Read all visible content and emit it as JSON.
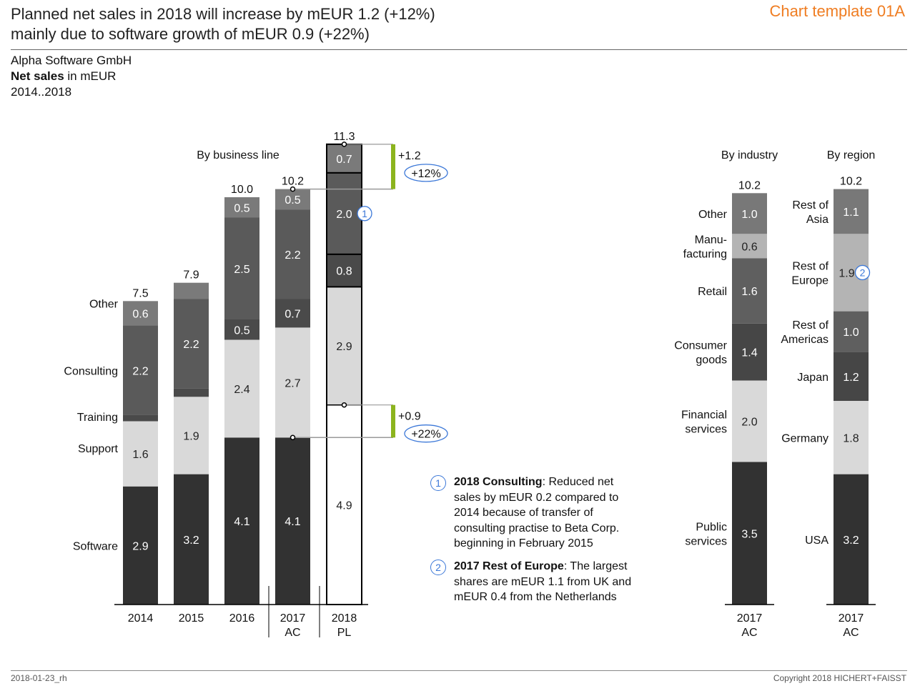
{
  "header": {
    "title_line1": "Planned net sales in 2018 will increase by mEUR 1.2 (+12%)",
    "title_line2": "mainly due to software growth of mEUR 0.9 (+22%)",
    "template_label": "Chart template 01A",
    "company": "Alpha Software GmbH",
    "measure_bold": "Net sales",
    "measure_unit": " in mEUR",
    "period": "2014..2018"
  },
  "footer": {
    "left": "2018-01-23_rh",
    "right": "Copyright 2018 HICHERT+FAISST"
  },
  "colors": {
    "software": "#323232",
    "support": "#d9d9d9",
    "training": "#4a4a4a",
    "consulting": "#5a5a5a",
    "other": "#7a7a7a",
    "plan_outline": "#000000",
    "delta_bar": "#8cb41e",
    "annotation_blue": "#3c78d8"
  },
  "chart_data": [
    {
      "type": "bar",
      "stacked": true,
      "title": "By business line",
      "categories": [
        "2014",
        "2015",
        "2016",
        "2017 AC",
        "2018 PL"
      ],
      "category_lines": [
        [
          "2014"
        ],
        [
          "2015"
        ],
        [
          "2016"
        ],
        [
          "2017",
          "AC"
        ],
        [
          "2018",
          "PL"
        ]
      ],
      "series": [
        {
          "name": "Software",
          "values": [
            2.9,
            3.2,
            4.1,
            4.1,
            4.9
          ],
          "labels": [
            "2.9",
            "3.2",
            "4.1",
            "4.1",
            "4.9"
          ]
        },
        {
          "name": "Support",
          "values": [
            1.6,
            1.9,
            2.4,
            2.7,
            2.9
          ],
          "labels": [
            "1.6",
            "1.9",
            "2.4",
            "2.7",
            "2.9"
          ]
        },
        {
          "name": "Training",
          "values": [
            0.15,
            0.2,
            0.5,
            0.7,
            0.8
          ],
          "labels": [
            "",
            "",
            "0.5",
            "0.7",
            "0.8"
          ]
        },
        {
          "name": "Consulting",
          "values": [
            2.2,
            2.2,
            2.5,
            2.2,
            2.0
          ],
          "labels": [
            "2.2",
            "2.2",
            "2.5",
            "2.2",
            "2.0"
          ]
        },
        {
          "name": "Other",
          "values": [
            0.6,
            0.4,
            0.5,
            0.5,
            0.7
          ],
          "labels": [
            "0.6",
            "",
            "0.5",
            "0.5",
            "0.7"
          ]
        }
      ],
      "totals": [
        "7.5",
        "7.9",
        "10.0",
        "10.2",
        "11.3"
      ],
      "legend_row_labels": [
        "Other",
        "Consulting",
        "Training",
        "Support",
        "Software"
      ],
      "scenario": {
        "plan_category": "2018 PL",
        "outlined": true
      },
      "deltas": [
        {
          "from": "2017 AC total",
          "to": "2018 PL total",
          "value": "+1.2",
          "percent": "+12%"
        },
        {
          "from": "2017 AC software",
          "to": "2018 PL software",
          "value": "+0.9",
          "percent": "+22%"
        }
      ],
      "markers": [
        {
          "category": "2018 PL",
          "series": "Consulting",
          "note": "1"
        }
      ]
    },
    {
      "type": "bar",
      "stacked": true,
      "title": "By industry",
      "categories": [
        "2017 AC"
      ],
      "category_lines": [
        [
          "2017",
          "AC"
        ]
      ],
      "series": [
        {
          "name": "Public services",
          "label_lines": [
            "Public",
            "services"
          ],
          "value": 3.5,
          "label": "3.5",
          "color": "#323232"
        },
        {
          "name": "Financial services",
          "label_lines": [
            "Financial",
            "services"
          ],
          "value": 2.0,
          "label": "2.0",
          "color": "#d9d9d9"
        },
        {
          "name": "Consumer goods",
          "label_lines": [
            "Consumer",
            "goods"
          ],
          "value": 1.4,
          "label": "1.4",
          "color": "#464646"
        },
        {
          "name": "Retail",
          "label_lines": [
            "Retail"
          ],
          "value": 1.6,
          "label": "1.6",
          "color": "#5f5f5f"
        },
        {
          "name": "Manu-facturing",
          "label_lines": [
            "Manu-",
            "facturing"
          ],
          "value": 0.6,
          "label": "0.6",
          "color": "#b4b4b4"
        },
        {
          "name": "Other",
          "label_lines": [
            "Other"
          ],
          "value": 1.0,
          "label": "1.0",
          "color": "#787878"
        }
      ],
      "total": "10.2"
    },
    {
      "type": "bar",
      "stacked": true,
      "title": "By region",
      "categories": [
        "2017 AC"
      ],
      "category_lines": [
        [
          "2017",
          "AC"
        ]
      ],
      "series": [
        {
          "name": "USA",
          "label_lines": [
            "USA"
          ],
          "value": 3.2,
          "label": "3.2",
          "color": "#323232"
        },
        {
          "name": "Germany",
          "label_lines": [
            "Germany"
          ],
          "value": 1.8,
          "label": "1.8",
          "color": "#d9d9d9"
        },
        {
          "name": "Japan",
          "label_lines": [
            "Japan"
          ],
          "value": 1.2,
          "label": "1.2",
          "color": "#464646"
        },
        {
          "name": "Rest of Americas",
          "label_lines": [
            "Rest of",
            "Americas"
          ],
          "value": 1.0,
          "label": "1.0",
          "color": "#5f5f5f"
        },
        {
          "name": "Rest of Europe",
          "label_lines": [
            "Rest of",
            "Europe"
          ],
          "value": 1.9,
          "label": "1.9",
          "color": "#b4b4b4",
          "note": "2"
        },
        {
          "name": "Rest of Asia",
          "label_lines": [
            "Rest of",
            "Asia"
          ],
          "value": 1.1,
          "label": "1.1",
          "color": "#787878"
        }
      ],
      "total": "10.2"
    }
  ],
  "footnotes": [
    {
      "number": "1",
      "title": "2018 Consulting",
      "text_lines": [
        ": Reduced net",
        "sales by mEUR 0.2 compared to",
        "2014 because of transfer of",
        "consulting practise to Beta Corp.",
        "beginning in February 2015"
      ]
    },
    {
      "number": "2",
      "title": "2017 Rest of Europe",
      "text_lines": [
        ": The largest",
        "shares are mEUR 1.1 from UK and",
        "mEUR 0.4 from the Netherlands"
      ]
    }
  ]
}
